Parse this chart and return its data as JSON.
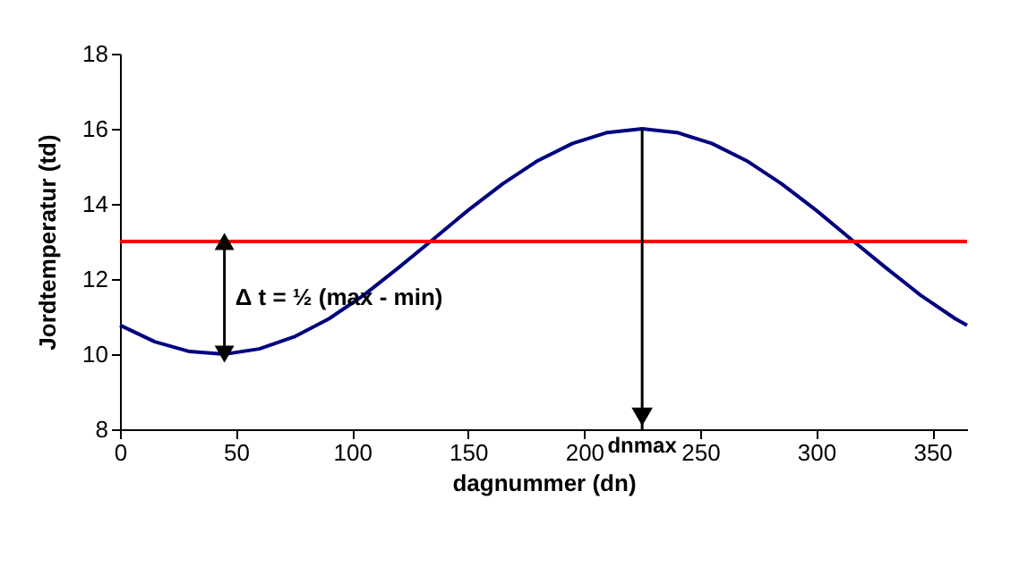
{
  "chart_data": {
    "type": "line",
    "xlabel": "dagnummer (dn)",
    "ylabel": "Jordtemperatur (td)",
    "x": [
      0,
      15,
      30,
      45,
      60,
      75,
      90,
      105,
      120,
      135,
      150,
      165,
      180,
      195,
      210,
      225,
      240,
      255,
      270,
      285,
      300,
      315,
      330,
      345,
      360,
      365
    ],
    "series": [
      {
        "color": "#000080",
        "values": [
          10.77,
          10.33,
          10.07,
          10.0,
          10.14,
          10.46,
          10.94,
          11.57,
          12.3,
          13.06,
          13.83,
          14.54,
          15.15,
          15.61,
          15.9,
          16.0,
          15.9,
          15.61,
          15.15,
          14.54,
          13.83,
          13.06,
          12.3,
          11.57,
          10.94,
          10.77
        ]
      }
    ],
    "xlim": [
      0,
      365
    ],
    "xticks": [
      0,
      50,
      100,
      150,
      200,
      250,
      300,
      350
    ],
    "ylim": [
      8,
      18
    ],
    "yticks": [
      8,
      10,
      12,
      14,
      16,
      18
    ],
    "ref_lines": [
      {
        "axis": "y",
        "value": 13,
        "color": "#ff0000"
      }
    ],
    "annotations": [
      {
        "text": "Δ t = ½ (max - min)",
        "x": 45,
        "y": 10
      },
      {
        "text": "dnmax",
        "x": 225,
        "y": 16
      }
    ],
    "grid": false,
    "marker": "none",
    "line_style": "solid"
  }
}
